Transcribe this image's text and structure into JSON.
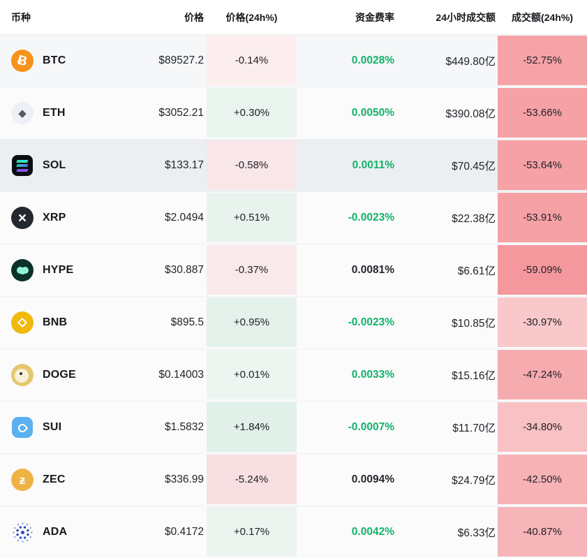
{
  "colors": {
    "green_text": "#12b269",
    "dark_text": "#23262b",
    "header_text": "#17191d",
    "row_default_bg": "#fbfbfc",
    "separator": "#edeff1"
  },
  "header": {
    "coin": "币种",
    "price": "价格",
    "price_change": "价格(24h%)",
    "funding": "资金费率",
    "volume": "24小时成交额",
    "volume_change": "成交额(24h%)"
  },
  "chart_data": {
    "type": "table",
    "title": "",
    "columns": [
      "币种",
      "价格",
      "价格(24h%)",
      "资金费率",
      "24小时成交额",
      "成交额(24h%)"
    ],
    "rows_numeric": [
      [
        "BTC",
        89527.2,
        -0.14,
        0.0028,
        449.8,
        -52.75
      ],
      [
        "ETH",
        3052.21,
        0.3,
        0.005,
        390.08,
        -53.66
      ],
      [
        "SOL",
        133.17,
        -0.58,
        0.0011,
        70.45,
        -53.64
      ],
      [
        "XRP",
        2.0494,
        0.51,
        -0.0023,
        22.38,
        -53.91
      ],
      [
        "HYPE",
        30.887,
        -0.37,
        0.0081,
        6.61,
        -59.09
      ],
      [
        "BNB",
        895.5,
        0.95,
        -0.0023,
        10.85,
        -30.97
      ],
      [
        "DOGE",
        0.14003,
        0.01,
        0.0033,
        15.16,
        -47.24
      ],
      [
        "SUI",
        1.5832,
        1.84,
        -0.0007,
        11.7,
        -34.8
      ],
      [
        "ZEC",
        336.99,
        -5.24,
        0.0094,
        24.79,
        -42.5
      ],
      [
        "ADA",
        0.4172,
        0.17,
        0.0042,
        6.33,
        -40.87
      ]
    ]
  },
  "rows": [
    {
      "symbol": "BTC",
      "price": "$89527.2",
      "price_chg": "-0.14%",
      "price_chg_bg": "#fcedee",
      "funding": "0.0028%",
      "funding_color": "#12b269",
      "volume": "$449.80亿",
      "vol_chg": "-52.75%",
      "vol_chg_bg": "#f5a3a7",
      "row_bg": "#f6f7f9",
      "icon": {
        "name": "btc-icon",
        "style": "glyph",
        "bg": "#f7931a",
        "fg": "#ffffff",
        "glyph": "Ƀ",
        "size": "19px",
        "rotate": "14deg"
      }
    },
    {
      "symbol": "ETH",
      "price": "$3052.21",
      "price_chg": "+0.30%",
      "price_chg_bg": "#eaf4ee",
      "funding": "0.0050%",
      "funding_color": "#12b269",
      "volume": "$390.08亿",
      "vol_chg": "-53.66%",
      "vol_chg_bg": "#f5a1a5",
      "row_bg": "#fbfbfc",
      "icon": {
        "name": "eth-icon",
        "style": "glyph",
        "bg": "#edf0f4",
        "fg": "#555b66",
        "glyph": "◆",
        "size": "15px",
        "rotate": "0deg"
      }
    },
    {
      "symbol": "SOL",
      "price": "$133.17",
      "price_chg": "-0.58%",
      "price_chg_bg": "#f9e6e8",
      "funding": "0.0011%",
      "funding_color": "#12b269",
      "volume": "$70.45亿",
      "vol_chg": "-53.64%",
      "vol_chg_bg": "#f5a1a5",
      "row_bg": "#eceff2",
      "icon": {
        "name": "sol-icon",
        "style": "sol",
        "bg": "#0b0d12",
        "bars": [
          "linear-gradient(90deg,#2be0a8,#32e3cf)",
          "linear-gradient(90deg,#1fc9b8,#5a6cf2)",
          "linear-gradient(90deg,#7b5cf0,#9a4bf2)"
        ]
      }
    },
    {
      "symbol": "XRP",
      "price": "$2.0494",
      "price_chg": "+0.51%",
      "price_chg_bg": "#e8f3ed",
      "funding": "-0.0023%",
      "funding_color": "#12b269",
      "volume": "$22.38亿",
      "vol_chg": "-53.91%",
      "vol_chg_bg": "#f5a1a5",
      "row_bg": "#fbfbfc",
      "icon": {
        "name": "xrp-icon",
        "style": "glyph",
        "bg": "#23292f",
        "fg": "#ffffff",
        "glyph": "×",
        "size": "21px",
        "rotate": "0deg"
      }
    },
    {
      "symbol": "HYPE",
      "price": "$30.887",
      "price_chg": "-0.37%",
      "price_chg_bg": "#fae9eb",
      "funding": "0.0081%",
      "funding_color": "#23262b",
      "volume": "$6.61亿",
      "vol_chg": "-59.09%",
      "vol_chg_bg": "#f4989d",
      "row_bg": "#fbfbfc",
      "icon": {
        "name": "hype-icon",
        "style": "hype",
        "bg": "#0c3129",
        "fg": "#8ff2d8"
      }
    },
    {
      "symbol": "BNB",
      "price": "$895.5",
      "price_chg": "+0.95%",
      "price_chg_bg": "#e4f1ea",
      "funding": "-0.0023%",
      "funding_color": "#12b269",
      "volume": "$10.85亿",
      "vol_chg": "-30.97%",
      "vol_chg_bg": "#f8c8cb",
      "row_bg": "#fbfbfc",
      "icon": {
        "name": "bnb-icon",
        "style": "bnb",
        "bg": "#f0b90b",
        "fg": "#ffffff"
      }
    },
    {
      "symbol": "DOGE",
      "price": "$0.14003",
      "price_chg": "+0.01%",
      "price_chg_bg": "#edf5f1",
      "funding": "0.0033%",
      "funding_color": "#12b269",
      "volume": "$15.16亿",
      "vol_chg": "-47.24%",
      "vol_chg_bg": "#f6abaf",
      "row_bg": "#fbfbfc",
      "icon": {
        "name": "doge-icon",
        "style": "doge",
        "bg": "#e3c86f",
        "fg": "#f8f0d8",
        "eye": "#3a3325"
      }
    },
    {
      "symbol": "SUI",
      "price": "$1.5832",
      "price_chg": "+1.84%",
      "price_chg_bg": "#e1f0e8",
      "funding": "-0.0007%",
      "funding_color": "#12b269",
      "volume": "$11.70亿",
      "vol_chg": "-34.80%",
      "vol_chg_bg": "#f8c1c4",
      "row_bg": "#fbfbfc",
      "icon": {
        "name": "sui-icon",
        "style": "sui",
        "bg": "#5bb0f0"
      }
    },
    {
      "symbol": "ZEC",
      "price": "$336.99",
      "price_chg": "-5.24%",
      "price_chg_bg": "#f8dfe1",
      "funding": "0.0094%",
      "funding_color": "#23262b",
      "volume": "$24.79亿",
      "vol_chg": "-42.50%",
      "vol_chg_bg": "#f6b2b5",
      "row_bg": "#fbfbfc",
      "icon": {
        "name": "zec-icon",
        "style": "glyph",
        "bg": "#eeb344",
        "fg": "#ffffff",
        "glyph": "ƶ",
        "size": "17px",
        "rotate": "0deg"
      }
    },
    {
      "symbol": "ADA",
      "price": "$0.4172",
      "price_chg": "+0.17%",
      "price_chg_bg": "#ecf4f0",
      "funding": "0.0042%",
      "funding_color": "#12b269",
      "volume": "$6.33亿",
      "vol_chg": "-40.87%",
      "vol_chg_bg": "#f6b5b8",
      "row_bg": "#fbfbfc",
      "icon": {
        "name": "ada-icon",
        "style": "ada",
        "fg": "#2b4ac4"
      }
    }
  ]
}
